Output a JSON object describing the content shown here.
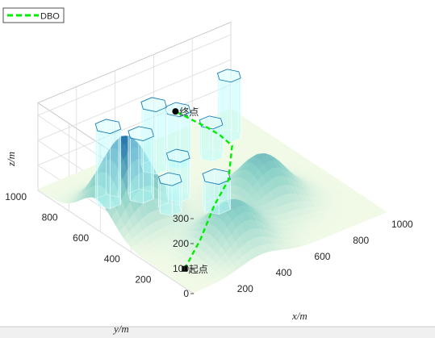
{
  "chart_data": {
    "type": "surface3d",
    "legend": {
      "placement": "top-left",
      "entries": [
        {
          "name": "DBO",
          "color": "#00ee00",
          "style": "dashed"
        }
      ]
    },
    "xlabel": "x/m",
    "ylabel": "y/m",
    "zlabel": "z/m",
    "xlim": [
      0,
      1000
    ],
    "ylim": [
      0,
      1000
    ],
    "zlim": [
      0,
      350
    ],
    "x_ticks": [
      "200",
      "400",
      "600",
      "800",
      "1000"
    ],
    "y_ticks": [
      "200",
      "400",
      "600",
      "800",
      "1000"
    ],
    "z_ticks": [
      "0",
      "100",
      "200",
      "300"
    ],
    "grid": true,
    "colors": {
      "surface_low": "#f4fbe8",
      "surface_high": "#1565a8",
      "obstacle_fill": "#b8fbfb",
      "obstacle_edge": "#1c7fb8",
      "path": "#00ee00"
    },
    "terrain_peaks": [
      {
        "x": 150,
        "y": 620,
        "height": 320
      },
      {
        "x": 350,
        "y": 180,
        "height": 175
      },
      {
        "x": 650,
        "y": 360,
        "height": 190
      }
    ],
    "obstacles": [
      {
        "x": 170,
        "y": 760,
        "radius": 55,
        "height": 300
      },
      {
        "x": 300,
        "y": 710,
        "radius": 55,
        "height": 250
      },
      {
        "x": 480,
        "y": 850,
        "radius": 55,
        "height": 250
      },
      {
        "x": 580,
        "y": 820,
        "radius": 55,
        "height": 210
      },
      {
        "x": 420,
        "y": 620,
        "radius": 50,
        "height": 160
      },
      {
        "x": 330,
        "y": 560,
        "radius": 50,
        "height": 120
      },
      {
        "x": 490,
        "y": 460,
        "radius": 60,
        "height": 120
      },
      {
        "x": 870,
        "y": 850,
        "radius": 50,
        "height": 240
      },
      {
        "x": 720,
        "y": 780,
        "radius": 50,
        "height": 130
      }
    ],
    "series": [
      {
        "name": "DBO",
        "x": [
          90,
          260,
          430,
          560,
          700,
          700,
          660,
          600
        ],
        "y": [
          170,
          280,
          400,
          470,
          620,
          700,
          730,
          860
        ],
        "z": [
          0,
          15,
          50,
          80,
          110,
          120,
          150,
          180
        ]
      }
    ],
    "annotations": [
      {
        "text": "起点",
        "x": 90,
        "y": 170,
        "z": 0,
        "marker": "square"
      },
      {
        "text": "终点",
        "x": 600,
        "y": 860,
        "z": 180,
        "marker": "circle"
      }
    ]
  }
}
